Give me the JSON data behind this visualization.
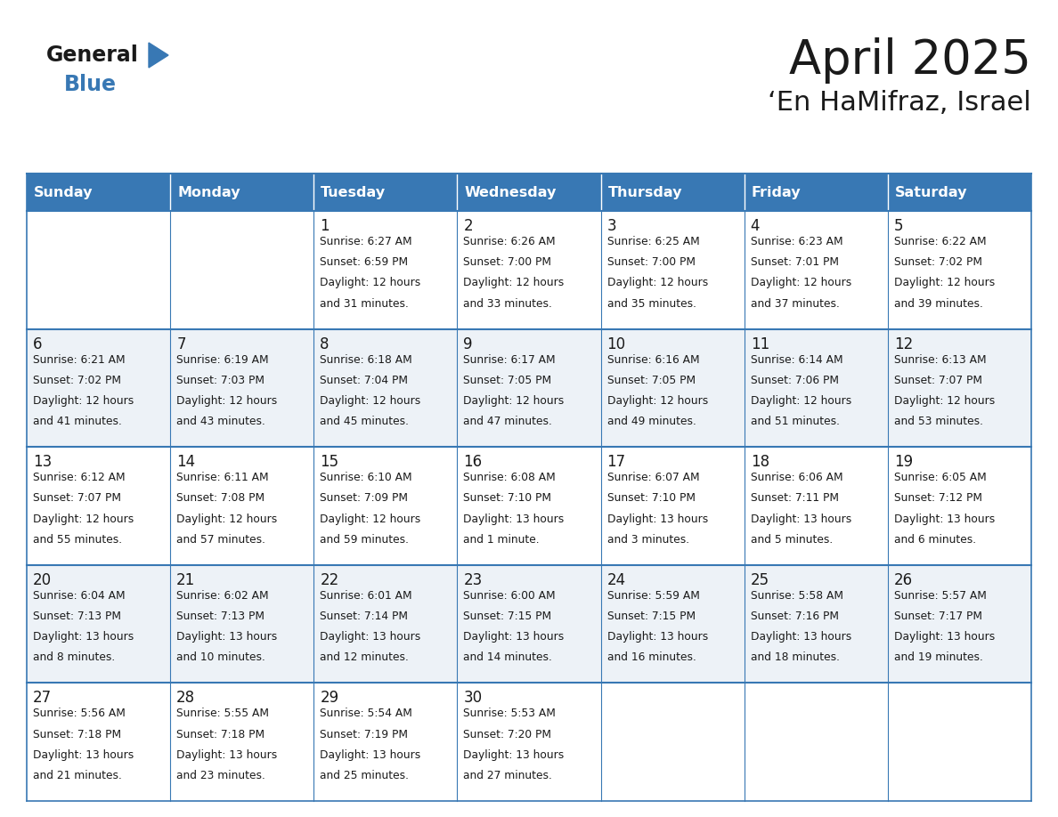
{
  "title": "April 2025",
  "subtitle": "‘En HaMifraz, Israel",
  "days_of_week": [
    "Sunday",
    "Monday",
    "Tuesday",
    "Wednesday",
    "Thursday",
    "Friday",
    "Saturday"
  ],
  "header_bg": "#3878b4",
  "header_text": "#ffffff",
  "row_bg_light": "#edf2f7",
  "row_bg_white": "#ffffff",
  "cell_border": "#3878b4",
  "day_num_color": "#1a1a1a",
  "day_text_color": "#1a1a1a",
  "title_color": "#1a1a1a",
  "subtitle_color": "#1a1a1a",
  "logo_general_color": "#1a1a1a",
  "logo_blue_color": "#3878b4",
  "logo_triangle_color": "#3878b4",
  "calendar_data": [
    [
      {
        "day": "",
        "sunrise": "",
        "sunset": "",
        "daylight": ""
      },
      {
        "day": "",
        "sunrise": "",
        "sunset": "",
        "daylight": ""
      },
      {
        "day": "1",
        "sunrise": "6:27 AM",
        "sunset": "6:59 PM",
        "daylight": "12 hours and 31 minutes."
      },
      {
        "day": "2",
        "sunrise": "6:26 AM",
        "sunset": "7:00 PM",
        "daylight": "12 hours and 33 minutes."
      },
      {
        "day": "3",
        "sunrise": "6:25 AM",
        "sunset": "7:00 PM",
        "daylight": "12 hours and 35 minutes."
      },
      {
        "day": "4",
        "sunrise": "6:23 AM",
        "sunset": "7:01 PM",
        "daylight": "12 hours and 37 minutes."
      },
      {
        "day": "5",
        "sunrise": "6:22 AM",
        "sunset": "7:02 PM",
        "daylight": "12 hours and 39 minutes."
      }
    ],
    [
      {
        "day": "6",
        "sunrise": "6:21 AM",
        "sunset": "7:02 PM",
        "daylight": "12 hours and 41 minutes."
      },
      {
        "day": "7",
        "sunrise": "6:19 AM",
        "sunset": "7:03 PM",
        "daylight": "12 hours and 43 minutes."
      },
      {
        "day": "8",
        "sunrise": "6:18 AM",
        "sunset": "7:04 PM",
        "daylight": "12 hours and 45 minutes."
      },
      {
        "day": "9",
        "sunrise": "6:17 AM",
        "sunset": "7:05 PM",
        "daylight": "12 hours and 47 minutes."
      },
      {
        "day": "10",
        "sunrise": "6:16 AM",
        "sunset": "7:05 PM",
        "daylight": "12 hours and 49 minutes."
      },
      {
        "day": "11",
        "sunrise": "6:14 AM",
        "sunset": "7:06 PM",
        "daylight": "12 hours and 51 minutes."
      },
      {
        "day": "12",
        "sunrise": "6:13 AM",
        "sunset": "7:07 PM",
        "daylight": "12 hours and 53 minutes."
      }
    ],
    [
      {
        "day": "13",
        "sunrise": "6:12 AM",
        "sunset": "7:07 PM",
        "daylight": "12 hours and 55 minutes."
      },
      {
        "day": "14",
        "sunrise": "6:11 AM",
        "sunset": "7:08 PM",
        "daylight": "12 hours and 57 minutes."
      },
      {
        "day": "15",
        "sunrise": "6:10 AM",
        "sunset": "7:09 PM",
        "daylight": "12 hours and 59 minutes."
      },
      {
        "day": "16",
        "sunrise": "6:08 AM",
        "sunset": "7:10 PM",
        "daylight": "13 hours and 1 minute."
      },
      {
        "day": "17",
        "sunrise": "6:07 AM",
        "sunset": "7:10 PM",
        "daylight": "13 hours and 3 minutes."
      },
      {
        "day": "18",
        "sunrise": "6:06 AM",
        "sunset": "7:11 PM",
        "daylight": "13 hours and 5 minutes."
      },
      {
        "day": "19",
        "sunrise": "6:05 AM",
        "sunset": "7:12 PM",
        "daylight": "13 hours and 6 minutes."
      }
    ],
    [
      {
        "day": "20",
        "sunrise": "6:04 AM",
        "sunset": "7:13 PM",
        "daylight": "13 hours and 8 minutes."
      },
      {
        "day": "21",
        "sunrise": "6:02 AM",
        "sunset": "7:13 PM",
        "daylight": "13 hours and 10 minutes."
      },
      {
        "day": "22",
        "sunrise": "6:01 AM",
        "sunset": "7:14 PM",
        "daylight": "13 hours and 12 minutes."
      },
      {
        "day": "23",
        "sunrise": "6:00 AM",
        "sunset": "7:15 PM",
        "daylight": "13 hours and 14 minutes."
      },
      {
        "day": "24",
        "sunrise": "5:59 AM",
        "sunset": "7:15 PM",
        "daylight": "13 hours and 16 minutes."
      },
      {
        "day": "25",
        "sunrise": "5:58 AM",
        "sunset": "7:16 PM",
        "daylight": "13 hours and 18 minutes."
      },
      {
        "day": "26",
        "sunrise": "5:57 AM",
        "sunset": "7:17 PM",
        "daylight": "13 hours and 19 minutes."
      }
    ],
    [
      {
        "day": "27",
        "sunrise": "5:56 AM",
        "sunset": "7:18 PM",
        "daylight": "13 hours and 21 minutes."
      },
      {
        "day": "28",
        "sunrise": "5:55 AM",
        "sunset": "7:18 PM",
        "daylight": "13 hours and 23 minutes."
      },
      {
        "day": "29",
        "sunrise": "5:54 AM",
        "sunset": "7:19 PM",
        "daylight": "13 hours and 25 minutes."
      },
      {
        "day": "30",
        "sunrise": "5:53 AM",
        "sunset": "7:20 PM",
        "daylight": "13 hours and 27 minutes."
      },
      {
        "day": "",
        "sunrise": "",
        "sunset": "",
        "daylight": ""
      },
      {
        "day": "",
        "sunrise": "",
        "sunset": "",
        "daylight": ""
      },
      {
        "day": "",
        "sunrise": "",
        "sunset": "",
        "daylight": ""
      }
    ]
  ]
}
